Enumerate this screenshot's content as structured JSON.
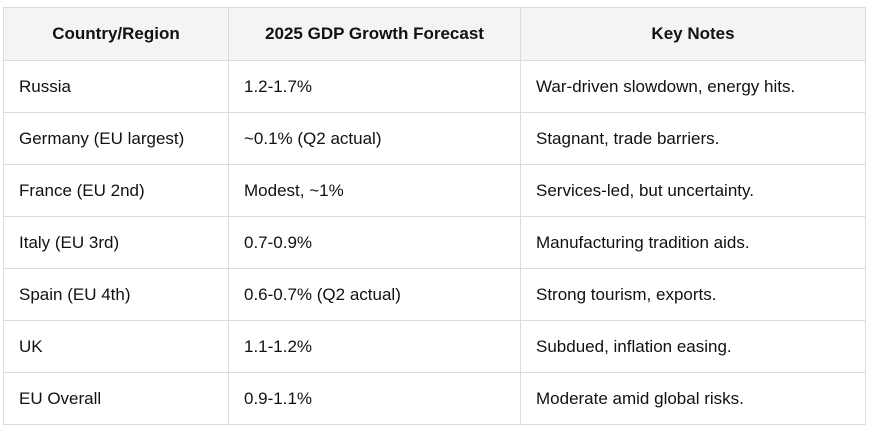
{
  "table": {
    "headers": [
      "Country/Region",
      "2025 GDP Growth Forecast",
      "Key Notes"
    ],
    "rows": [
      [
        "Russia",
        "1.2-1.7%",
        "War-driven slowdown, energy hits."
      ],
      [
        "Germany (EU largest)",
        "~0.1% (Q2 actual)",
        "Stagnant, trade barriers."
      ],
      [
        "France (EU 2nd)",
        "Modest, ~1%",
        "Services-led, but uncertainty."
      ],
      [
        "Italy (EU 3rd)",
        "0.7-0.9%",
        "Manufacturing tradition aids."
      ],
      [
        "Spain (EU 4th)",
        "0.6-0.7% (Q2 actual)",
        "Strong tourism, exports."
      ],
      [
        "UK",
        "1.1-1.2%",
        "Subdued, inflation easing."
      ],
      [
        "EU Overall",
        "0.9-1.1%",
        "Moderate amid global risks."
      ]
    ]
  }
}
